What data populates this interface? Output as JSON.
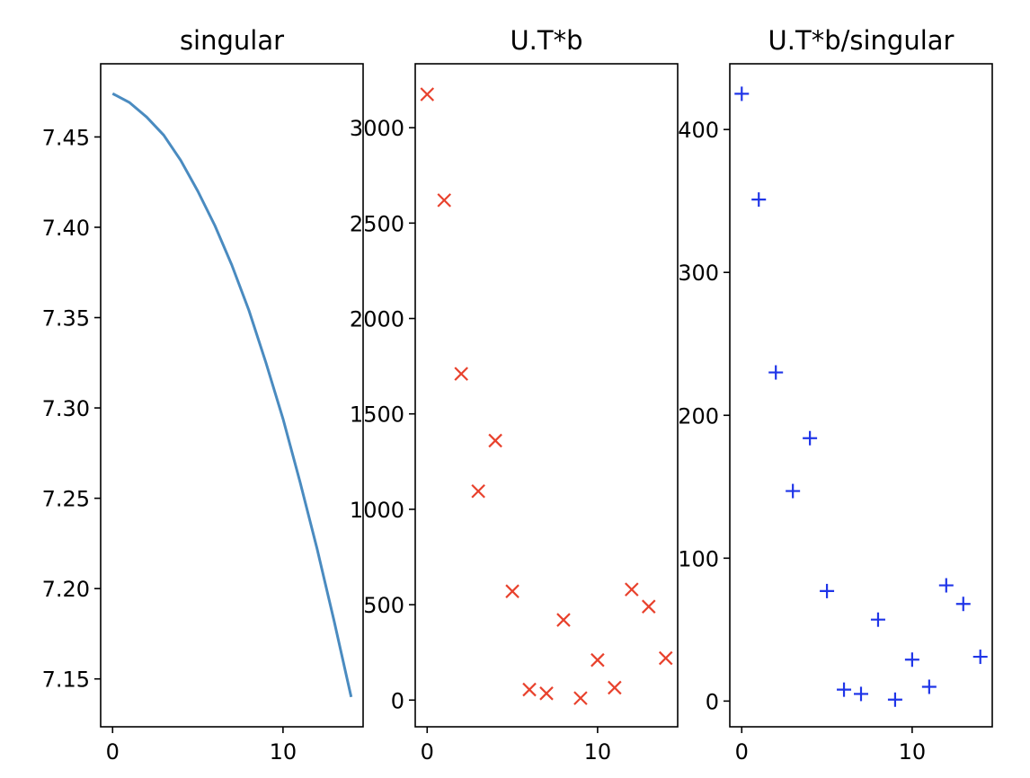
{
  "chart_data": [
    {
      "type": "line",
      "title": "singular",
      "xlabel": "",
      "ylabel": "",
      "xlim": [
        -0.7,
        14.7
      ],
      "ylim": [
        7.1235,
        7.4905
      ],
      "xticks": [
        0,
        10
      ],
      "xtick_labels": [
        "0",
        "10"
      ],
      "yticks": [
        7.15,
        7.2,
        7.25,
        7.3,
        7.35,
        7.4,
        7.45
      ],
      "ytick_labels": [
        "7.15",
        "7.20",
        "7.25",
        "7.30",
        "7.35",
        "7.40",
        "7.45"
      ],
      "grid": false,
      "color": "#4a8bc0",
      "series": [
        {
          "x": [
            0,
            1,
            2,
            3,
            4,
            5,
            6,
            7,
            8,
            9,
            10,
            11,
            12,
            13,
            14
          ],
          "values": [
            7.474,
            7.469,
            7.461,
            7.451,
            7.437,
            7.42,
            7.401,
            7.379,
            7.354,
            7.325,
            7.294,
            7.259,
            7.222,
            7.182,
            7.14
          ]
        }
      ]
    },
    {
      "type": "scatter",
      "title": "U.T*b",
      "xlabel": "",
      "ylabel": "",
      "xlim": [
        -0.7,
        14.7
      ],
      "ylim": [
        -140,
        3335
      ],
      "xticks": [
        0,
        10
      ],
      "xtick_labels": [
        "0",
        "10"
      ],
      "yticks": [
        0,
        500,
        1000,
        1500,
        2000,
        2500,
        3000
      ],
      "ytick_labels": [
        "0",
        "500",
        "1000",
        "1500",
        "2000",
        "2500",
        "3000"
      ],
      "grid": false,
      "marker": "x",
      "color": "#e8412c",
      "series": [
        {
          "x": [
            0,
            1,
            2,
            3,
            4,
            5,
            6,
            7,
            8,
            9,
            10,
            11,
            12,
            13,
            14
          ],
          "values": [
            3175,
            2620,
            1710,
            1095,
            1360,
            570,
            55,
            35,
            420,
            10,
            210,
            65,
            580,
            490,
            220
          ]
        }
      ]
    },
    {
      "type": "scatter",
      "title": "U.T*b/singular",
      "xlabel": "",
      "ylabel": "",
      "xlim": [
        -0.7,
        14.7
      ],
      "ylim": [
        -18,
        446
      ],
      "xticks": [
        0,
        10
      ],
      "xtick_labels": [
        "0",
        "10"
      ],
      "yticks": [
        0,
        100,
        200,
        300,
        400
      ],
      "ytick_labels": [
        "0",
        "100",
        "200",
        "300",
        "400"
      ],
      "grid": false,
      "marker": "+",
      "color": "#1f35e8",
      "series": [
        {
          "x": [
            0,
            1,
            2,
            3,
            4,
            5,
            6,
            7,
            8,
            9,
            10,
            11,
            12,
            13,
            14
          ],
          "values": [
            425,
            351,
            230,
            147,
            184,
            77,
            8,
            5,
            57,
            1,
            29,
            10,
            81,
            68,
            31
          ]
        }
      ]
    }
  ]
}
